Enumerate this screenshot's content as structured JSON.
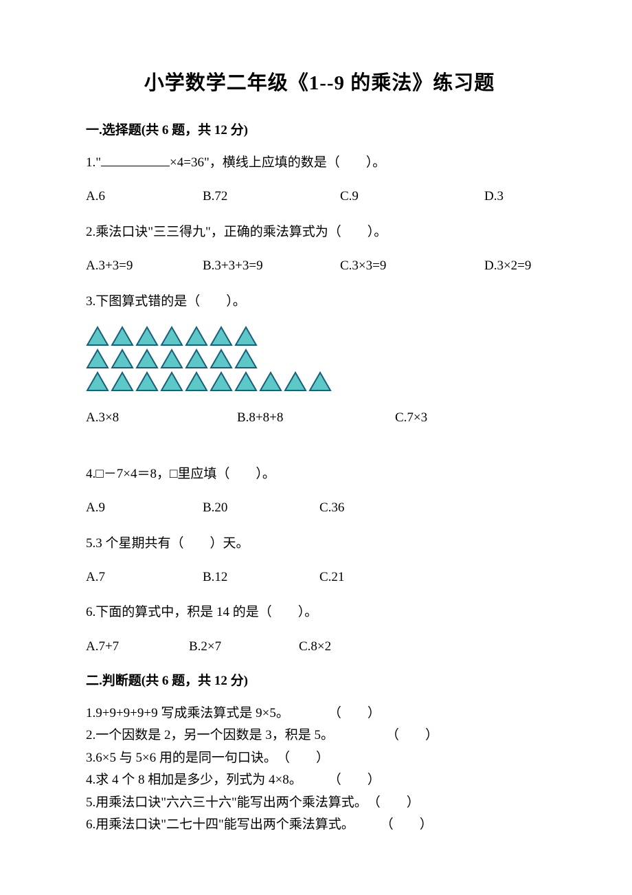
{
  "title": "小学数学二年级《1--9 的乘法》练习题",
  "section1": {
    "header": "一.选择题(共 6 题，共 12 分)",
    "q1": {
      "text_prefix": "1.\"",
      "text_suffix": "×4=36\"，横线上应填的数是（　　）。",
      "a": "A.6",
      "b": "B.72",
      "c": "C.9",
      "d": "D.3"
    },
    "q2": {
      "text": "2.乘法口诀\"三三得九\"，正确的乘法算式为（　　）。",
      "a": "A.3+3=9",
      "b": "B.3+3+3=9",
      "c": "C.3×3=9",
      "d": "D.3×2=9"
    },
    "q3": {
      "text": "3.下图算式错的是（　　）。",
      "a": "A.3×8",
      "b": "B.8+8+8",
      "c": "C.7×3",
      "triangles": {
        "rows": 3,
        "row_counts": [
          7,
          7,
          10
        ],
        "fill_color": "#5ec8c8",
        "stroke_color": "#1a5f7a"
      }
    },
    "q4": {
      "text": "4.□－7×4＝8，□里应填（　　）。",
      "a": "A.9",
      "b": "B.20",
      "c": "C.36"
    },
    "q5": {
      "text": "5.3 个星期共有（　　）天。",
      "a": "A.7",
      "b": "B.12",
      "c": "C.21"
    },
    "q6": {
      "text": "6.下面的算式中，积是 14 的是（　　）。",
      "a": "A.7+7",
      "b": "B.2×7",
      "c": "C.8×2"
    }
  },
  "section2": {
    "header": "二.判断题(共 6 题，共 12 分)",
    "items": [
      {
        "text": "1.9+9+9+9+9 写成乘法算式是 9×5。",
        "gap": "　　　"
      },
      {
        "text": "2.一个因数是 2，另一个因数是 3，积是 5。",
        "gap": "　　　　"
      },
      {
        "text": "3.6×5 与 5×6 用的是同一句口诀。",
        "gap": ""
      },
      {
        "text": "4.求 4 个 8 相加是多少，列式为 4×8。",
        "gap": "　　"
      },
      {
        "text": "5.用乘法口诀\"六六三十六\"能写出两个乘法算式。",
        "gap": ""
      },
      {
        "text": "6.用乘法口诀\"二七十四\"能写出两个乘法算式。",
        "gap": "　　"
      }
    ],
    "paren": "（　　）"
  }
}
